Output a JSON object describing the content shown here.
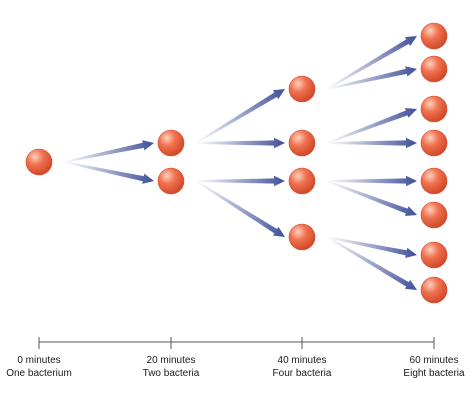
{
  "colors": {
    "bacterium_fill": "#f07250",
    "bacterium_highlight": "#ffd2bf",
    "bacterium_edge": "#d24a2a",
    "arrow": "#3f4f9a",
    "axis": "#555555"
  },
  "timeline": [
    {
      "time": "0 minutes",
      "label": "One bacterium"
    },
    {
      "time": "20 minutes",
      "label": "Two bacteria"
    },
    {
      "time": "40 minutes",
      "label": "Four bacteria"
    },
    {
      "time": "60 minutes",
      "label": "Eight bacteria"
    }
  ],
  "generations": [
    {
      "minutes": 0,
      "count": 1
    },
    {
      "minutes": 20,
      "count": 2
    },
    {
      "minutes": 40,
      "count": 4
    },
    {
      "minutes": 60,
      "count": 8
    }
  ]
}
